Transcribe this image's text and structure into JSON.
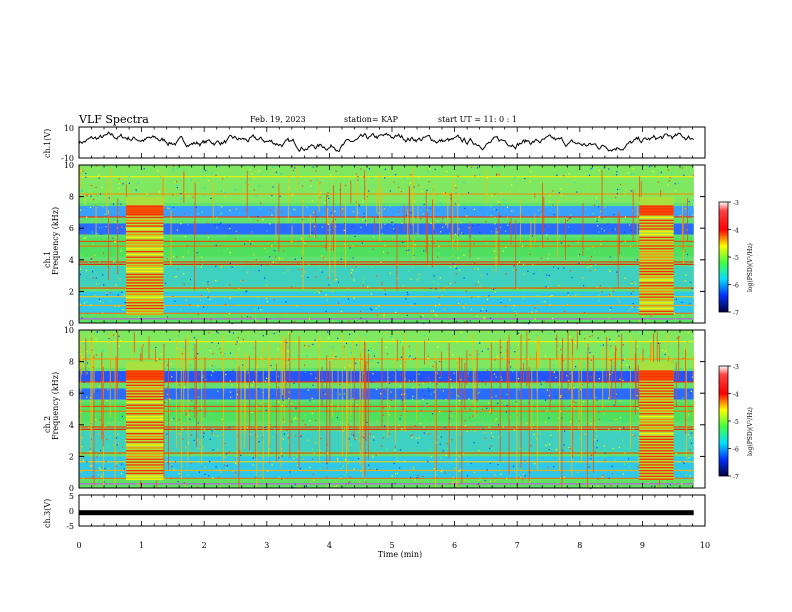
{
  "header": {
    "title": "VLF Spectra",
    "date": "Feb. 19, 2023",
    "station": "station= KAP",
    "start": "start UT =  11: 0  : 1"
  },
  "chart_data": [
    {
      "type": "line",
      "name": "ch1-waveform",
      "ylabel": "ch.1(V)",
      "ylim": [
        -10,
        10
      ],
      "yticks": [
        "10",
        "-10"
      ],
      "xlim": [
        0,
        10
      ],
      "description_level": "noisy signal oscillating roughly between -6 and 5 V"
    },
    {
      "type": "heatmap",
      "name": "ch1-spectrogram",
      "ylabel": "ch.1",
      "ylabel2": "Frequency (kHz)",
      "ylim": [
        0,
        10
      ],
      "yticks": [
        "0",
        "2",
        "4",
        "6",
        "8",
        "10"
      ],
      "xlim": [
        0,
        10
      ],
      "bursts_min": [
        [
          0.75,
          1.35
        ],
        [
          8.95,
          9.5
        ]
      ]
    },
    {
      "type": "heatmap",
      "name": "ch2-spectrogram",
      "ylabel": "ch.2",
      "ylabel2": "Frequency (kHz)",
      "ylim": [
        0,
        10
      ],
      "yticks": [
        "0",
        "2",
        "4",
        "6",
        "8",
        "10"
      ],
      "xlim": [
        0,
        10
      ],
      "bursts_min": [
        [
          0.75,
          1.35
        ],
        [
          8.95,
          9.5
        ]
      ]
    },
    {
      "type": "line",
      "name": "ch3-waveform",
      "ylabel": "ch.3(V)",
      "ylim": [
        -5,
        5
      ],
      "yticks": [
        "5",
        "0",
        "-5"
      ],
      "xlim": [
        0,
        10
      ],
      "level": -0.7
    }
  ],
  "xaxis": {
    "label": "Time  (min)",
    "ticks": [
      "0",
      "1",
      "2",
      "3",
      "4",
      "5",
      "6",
      "7",
      "8",
      "9",
      "10"
    ]
  },
  "colorbar": {
    "label": "log(PSD)(V²/Hz)",
    "ticks": [
      "-3",
      "-4",
      "-5",
      "-6",
      "-7"
    ],
    "colors": [
      "#ff0000",
      "#ff8800",
      "#ffff00",
      "#80ff00",
      "#00ff66",
      "#00ccff",
      "#0033ff",
      "#000080"
    ]
  }
}
